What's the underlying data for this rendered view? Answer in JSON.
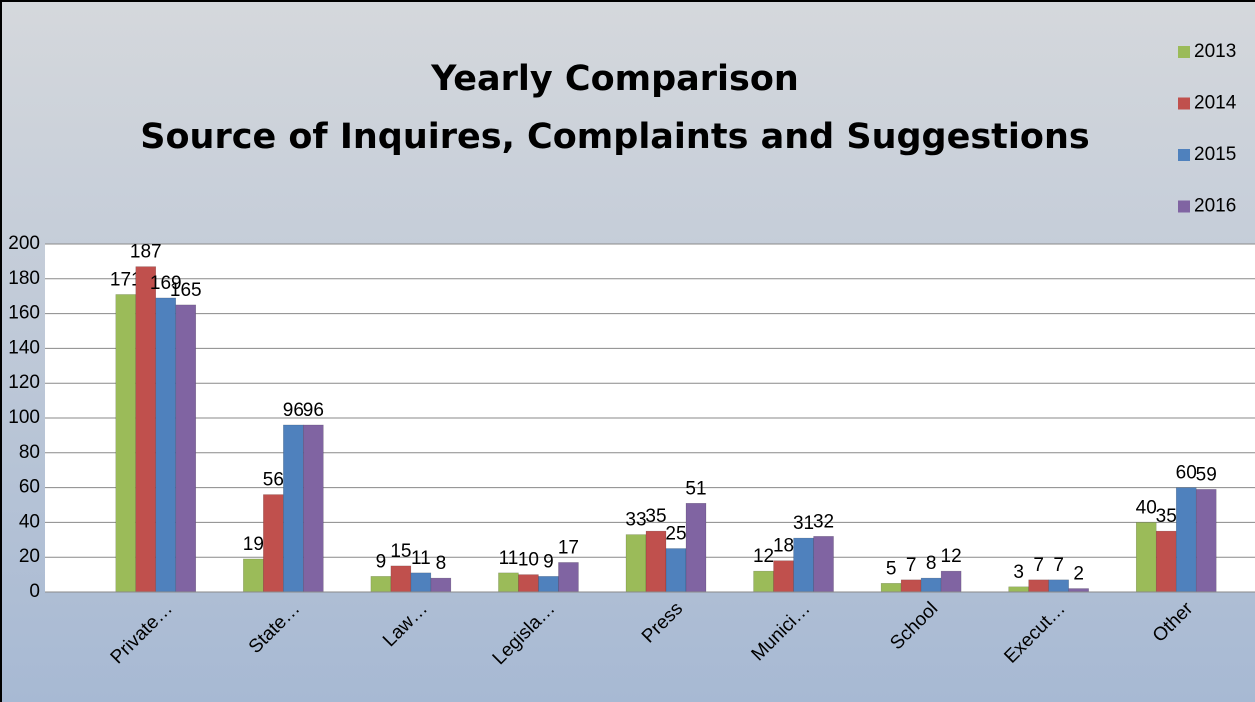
{
  "chart_data": {
    "type": "bar",
    "title": "Yearly Comparison",
    "subtitle": "Source of Inquires, Complaints and Suggestions",
    "categories": [
      "Private…",
      "State…",
      "Law…",
      "Legisla…",
      "Press",
      "Munici…",
      "School",
      "Execut…",
      "Other"
    ],
    "series": [
      {
        "name": "2013",
        "color": "#9bbb59",
        "values": [
          171,
          19,
          9,
          11,
          33,
          12,
          5,
          3,
          40
        ]
      },
      {
        "name": "2014",
        "color": "#c0504d",
        "values": [
          187,
          56,
          15,
          10,
          35,
          18,
          7,
          7,
          35
        ]
      },
      {
        "name": "2015",
        "color": "#4f81bd",
        "values": [
          169,
          96,
          11,
          9,
          25,
          31,
          8,
          7,
          60
        ]
      },
      {
        "name": "2016",
        "color": "#8064a2",
        "values": [
          165,
          96,
          8,
          17,
          51,
          32,
          12,
          2,
          59
        ]
      }
    ],
    "ylim": [
      0,
      200
    ],
    "yticks": [
      0,
      20,
      40,
      60,
      80,
      100,
      120,
      140,
      160,
      180,
      200
    ],
    "grid": true,
    "legend": "right"
  }
}
